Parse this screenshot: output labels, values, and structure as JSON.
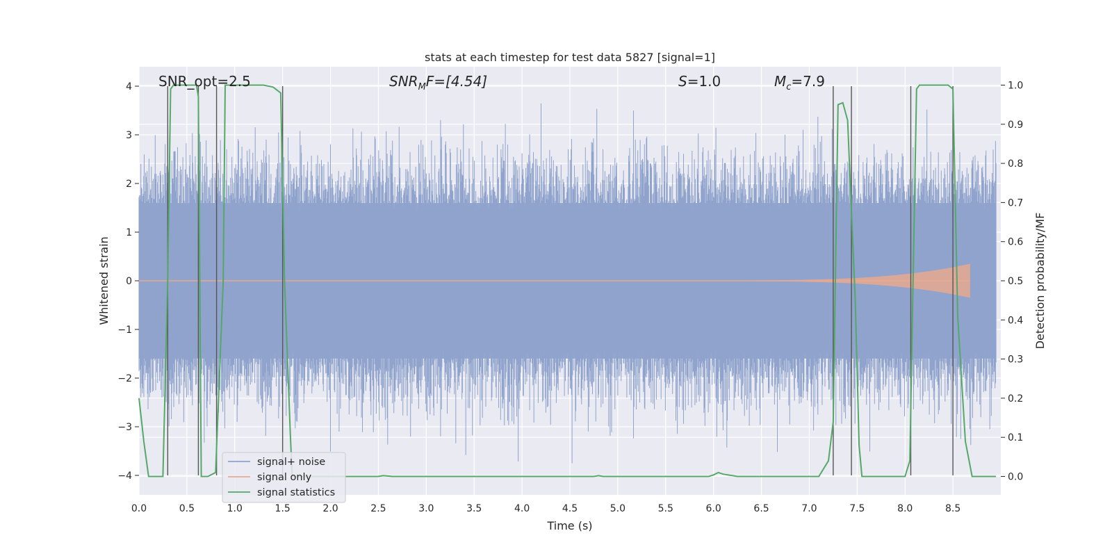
{
  "chart_data": {
    "type": "line",
    "title": "stats at each timestep for test data 5827 [signal=1]",
    "xlabel": "Time (s)",
    "ylabel": "Whitened strain",
    "ylabel_right": "Detection probability/MF",
    "xlim": [
      0.0,
      9.0
    ],
    "ylim": [
      -4.4,
      4.4
    ],
    "ylim_right": [
      -0.047,
      1.047
    ],
    "xticks": [
      0.0,
      0.5,
      1.0,
      1.5,
      2.0,
      2.5,
      3.0,
      3.5,
      4.0,
      4.5,
      5.0,
      5.5,
      6.0,
      6.5,
      7.0,
      7.5,
      8.0,
      8.5
    ],
    "xtick_labels": [
      "0.0",
      "0.5",
      "1.0",
      "1.5",
      "2.0",
      "2.5",
      "3.0",
      "3.5",
      "4.0",
      "4.5",
      "5.0",
      "5.5",
      "6.0",
      "6.5",
      "7.0",
      "7.5",
      "8.0",
      "8.5"
    ],
    "yticks": [
      4,
      3,
      2,
      1,
      0,
      -1,
      -2,
      -3,
      -4
    ],
    "ytick_labels": [
      "4",
      "3",
      "2",
      "1",
      "0",
      "−1",
      "−2",
      "−3",
      "−4"
    ],
    "yticks_right": [
      1.0,
      0.9,
      0.8,
      0.7,
      0.6,
      0.5,
      0.4,
      0.3,
      0.2,
      0.1,
      0.0
    ],
    "ytick_labels_right": [
      "1.0",
      "0.9",
      "0.8",
      "0.7",
      "0.6",
      "0.5",
      "0.4",
      "0.3",
      "0.2",
      "0.1",
      "0.0"
    ],
    "annotations": {
      "snr_opt": "SNR_opt=2.5",
      "snr_mf_main": "SNR",
      "snr_mf_sub": "M",
      "snr_mf_rest": "F=[4.54]",
      "s_main": "S",
      "s_rest": "=1.0",
      "mc_main": "M",
      "mc_sub": "c",
      "mc_rest": "=7.9"
    },
    "legend": {
      "location": "lower-left",
      "entries": [
        {
          "label": "signal+ noise",
          "color": "#8fa3cc"
        },
        {
          "label": "signal only",
          "color": "#e8a98f"
        },
        {
          "label": "signal statistics",
          "color": "#55a868"
        }
      ]
    },
    "noise_series": {
      "name": "signal+ noise",
      "t_start": 0.0,
      "t_end": 8.95,
      "samples": 1800,
      "core_amplitude": 1.6,
      "peak_max": 3.85,
      "peak_min": -3.75,
      "seed": 5827
    },
    "signal_series": {
      "name": "signal only",
      "t_start": 5.5,
      "t_end": 8.68,
      "amplitude_end": 0.35,
      "amplitude_start": 0.005
    },
    "statistic_series": {
      "name": "signal statistics",
      "t": [
        0.0,
        0.05,
        0.1,
        0.25,
        0.3,
        0.33,
        0.36,
        0.6,
        0.62,
        0.65,
        0.72,
        0.8,
        0.88,
        0.9,
        1.3,
        1.4,
        1.48,
        1.52,
        1.58,
        1.6,
        2.5,
        2.55,
        2.65,
        4.75,
        4.8,
        4.85,
        5.95,
        6.0,
        6.05,
        6.1,
        6.25,
        6.5,
        7.1,
        7.2,
        7.25,
        7.3,
        7.35,
        7.4,
        7.48,
        7.52,
        7.55,
        8.0,
        8.05,
        8.12,
        8.15,
        8.45,
        8.5,
        8.55,
        8.63,
        8.7,
        8.95
      ],
      "values": [
        0.2,
        0.09,
        0.0,
        0.0,
        0.5,
        0.99,
        1.0,
        1.0,
        0.97,
        0.0,
        0.0,
        0.01,
        0.5,
        1.0,
        1.0,
        0.995,
        0.98,
        0.5,
        0.11,
        0.0,
        0.0,
        0.002,
        0.0,
        0.0,
        0.002,
        0.0,
        0.0,
        0.004,
        0.01,
        0.006,
        0.0,
        0.0,
        0.0,
        0.04,
        0.14,
        0.95,
        0.955,
        0.91,
        0.45,
        0.08,
        0.0,
        0.0,
        0.04,
        0.99,
        1.0,
        1.0,
        0.99,
        0.41,
        0.09,
        0.0,
        0.0
      ]
    },
    "event_lines": {
      "t": [
        0.3,
        0.62,
        0.81,
        1.5,
        7.25,
        7.44,
        8.06,
        8.5
      ],
      "y_top": 4.0,
      "y_bottom": -4.0
    }
  }
}
